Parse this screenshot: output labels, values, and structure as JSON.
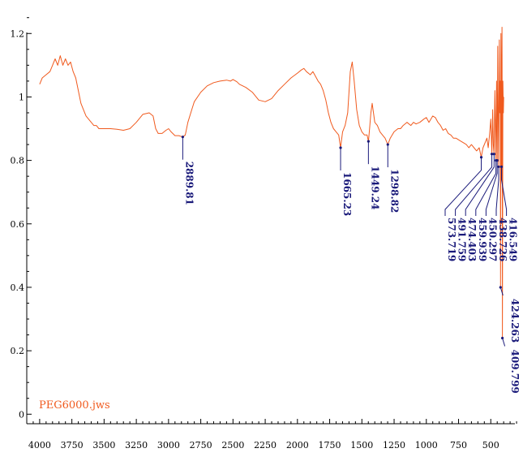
{
  "chart_data": {
    "type": "line",
    "title": "",
    "xlabel": "",
    "ylabel": "",
    "xlim": [
      4100,
      250
    ],
    "ylim": [
      -0.03,
      1.28
    ],
    "x_reversed": true,
    "grid": false,
    "series": [
      {
        "name": "PEG6000.jws",
        "color": "#f05a1e",
        "points": [
          [
            4000,
            1.04
          ],
          [
            3980,
            1.06
          ],
          [
            3950,
            1.07
          ],
          [
            3920,
            1.08
          ],
          [
            3900,
            1.1
          ],
          [
            3880,
            1.12
          ],
          [
            3860,
            1.1
          ],
          [
            3840,
            1.13
          ],
          [
            3820,
            1.1
          ],
          [
            3800,
            1.12
          ],
          [
            3780,
            1.1
          ],
          [
            3760,
            1.11
          ],
          [
            3740,
            1.08
          ],
          [
            3720,
            1.06
          ],
          [
            3700,
            1.02
          ],
          [
            3680,
            0.98
          ],
          [
            3660,
            0.96
          ],
          [
            3640,
            0.94
          ],
          [
            3620,
            0.93
          ],
          [
            3600,
            0.92
          ],
          [
            3580,
            0.91
          ],
          [
            3560,
            0.91
          ],
          [
            3540,
            0.9
          ],
          [
            3500,
            0.9
          ],
          [
            3450,
            0.9
          ],
          [
            3400,
            0.898
          ],
          [
            3350,
            0.895
          ],
          [
            3300,
            0.9
          ],
          [
            3250,
            0.92
          ],
          [
            3200,
            0.945
          ],
          [
            3150,
            0.95
          ],
          [
            3120,
            0.94
          ],
          [
            3100,
            0.9
          ],
          [
            3080,
            0.885
          ],
          [
            3050,
            0.885
          ],
          [
            3020,
            0.895
          ],
          [
            3000,
            0.9
          ],
          [
            2980,
            0.89
          ],
          [
            2950,
            0.878
          ],
          [
            2920,
            0.878
          ],
          [
            2889.81,
            0.874
          ],
          [
            2870,
            0.88
          ],
          [
            2850,
            0.92
          ],
          [
            2820,
            0.96
          ],
          [
            2800,
            0.985
          ],
          [
            2750,
            1.015
          ],
          [
            2700,
            1.035
          ],
          [
            2650,
            1.045
          ],
          [
            2600,
            1.05
          ],
          [
            2550,
            1.053
          ],
          [
            2520,
            1.05
          ],
          [
            2500,
            1.055
          ],
          [
            2470,
            1.048
          ],
          [
            2450,
            1.04
          ],
          [
            2400,
            1.03
          ],
          [
            2350,
            1.015
          ],
          [
            2300,
            0.99
          ],
          [
            2250,
            0.985
          ],
          [
            2200,
            0.995
          ],
          [
            2150,
            1.02
          ],
          [
            2100,
            1.04
          ],
          [
            2050,
            1.06
          ],
          [
            2000,
            1.075
          ],
          [
            1970,
            1.085
          ],
          [
            1950,
            1.09
          ],
          [
            1930,
            1.08
          ],
          [
            1900,
            1.07
          ],
          [
            1880,
            1.08
          ],
          [
            1860,
            1.065
          ],
          [
            1840,
            1.05
          ],
          [
            1820,
            1.04
          ],
          [
            1800,
            1.02
          ],
          [
            1780,
            0.99
          ],
          [
            1760,
            0.95
          ],
          [
            1740,
            0.92
          ],
          [
            1720,
            0.9
          ],
          [
            1700,
            0.89
          ],
          [
            1680,
            0.88
          ],
          [
            1665.23,
            0.84
          ],
          [
            1650,
            0.89
          ],
          [
            1630,
            0.91
          ],
          [
            1610,
            0.95
          ],
          [
            1590,
            1.08
          ],
          [
            1575,
            1.11
          ],
          [
            1560,
            1.05
          ],
          [
            1540,
            0.96
          ],
          [
            1520,
            0.91
          ],
          [
            1500,
            0.89
          ],
          [
            1480,
            0.88
          ],
          [
            1460,
            0.88
          ],
          [
            1449.24,
            0.86
          ],
          [
            1440,
            0.9
          ],
          [
            1430,
            0.95
          ],
          [
            1420,
            0.98
          ],
          [
            1410,
            0.95
          ],
          [
            1400,
            0.92
          ],
          [
            1380,
            0.91
          ],
          [
            1360,
            0.89
          ],
          [
            1340,
            0.88
          ],
          [
            1320,
            0.87
          ],
          [
            1298.82,
            0.85
          ],
          [
            1280,
            0.87
          ],
          [
            1250,
            0.89
          ],
          [
            1220,
            0.9
          ],
          [
            1200,
            0.9
          ],
          [
            1180,
            0.91
          ],
          [
            1150,
            0.92
          ],
          [
            1120,
            0.91
          ],
          [
            1100,
            0.92
          ],
          [
            1080,
            0.915
          ],
          [
            1050,
            0.92
          ],
          [
            1020,
            0.93
          ],
          [
            1000,
            0.935
          ],
          [
            980,
            0.92
          ],
          [
            950,
            0.94
          ],
          [
            930,
            0.935
          ],
          [
            910,
            0.92
          ],
          [
            890,
            0.91
          ],
          [
            870,
            0.895
          ],
          [
            850,
            0.9
          ],
          [
            830,
            0.885
          ],
          [
            810,
            0.88
          ],
          [
            790,
            0.87
          ],
          [
            770,
            0.87
          ],
          [
            750,
            0.865
          ],
          [
            730,
            0.86
          ],
          [
            710,
            0.855
          ],
          [
            690,
            0.85
          ],
          [
            670,
            0.84
          ],
          [
            650,
            0.85
          ],
          [
            630,
            0.84
          ],
          [
            610,
            0.83
          ],
          [
            590,
            0.84
          ],
          [
            573.719,
            0.81
          ],
          [
            560,
            0.84
          ],
          [
            540,
            0.86
          ],
          [
            530,
            0.87
          ],
          [
            520,
            0.84
          ],
          [
            510,
            0.88
          ],
          [
            500,
            0.93
          ],
          [
            491.759,
            0.82
          ],
          [
            485,
            0.96
          ],
          [
            480,
            0.85
          ],
          [
            474.403,
            0.82
          ],
          [
            468,
            1.02
          ],
          [
            463,
            0.88
          ],
          [
            459.939,
            0.8
          ],
          [
            455,
            1.05
          ],
          [
            450.297,
            0.8
          ],
          [
            446,
            1.16
          ],
          [
            442,
            0.92
          ],
          [
            438.726,
            0.78
          ],
          [
            434,
            1.18
          ],
          [
            430,
            0.95
          ],
          [
            426,
            1.05
          ],
          [
            424.263,
            0.4
          ],
          [
            421,
            1.2
          ],
          [
            418,
            1.0
          ],
          [
            416.549,
            0.78
          ],
          [
            413,
            1.22
          ],
          [
            411,
            0.9
          ],
          [
            409.799,
            0.24
          ],
          [
            406,
            1.05
          ],
          [
            402,
            0.95
          ],
          [
            400,
            1.0
          ]
        ]
      }
    ],
    "x_ticks": [
      4000,
      3750,
      3500,
      3250,
      3000,
      2750,
      2500,
      2250,
      2000,
      1750,
      1500,
      1250,
      1000,
      750,
      500
    ],
    "y_ticks": [
      0,
      0.2,
      0.4,
      0.6,
      0.8,
      1,
      1.2
    ],
    "legend_text": "PEG6000.jws",
    "peak_labels": [
      {
        "label": "2889.81",
        "x": 2889.81,
        "y": 0.874
      },
      {
        "label": "1665.23",
        "x": 1665.23,
        "y": 0.84
      },
      {
        "label": "1449.24",
        "x": 1449.24,
        "y": 0.86
      },
      {
        "label": "1298.82",
        "x": 1298.82,
        "y": 0.85
      },
      {
        "label": "573.719",
        "x": 573.719,
        "y": 0.81
      },
      {
        "label": "491.759",
        "x": 491.759,
        "y": 0.82
      },
      {
        "label": "474.403",
        "x": 474.403,
        "y": 0.82
      },
      {
        "label": "459.939",
        "x": 459.939,
        "y": 0.8
      },
      {
        "label": "450.297",
        "x": 450.297,
        "y": 0.8
      },
      {
        "label": "438.726",
        "x": 438.726,
        "y": 0.78
      },
      {
        "label": "416.549",
        "x": 416.549,
        "y": 0.78
      },
      {
        "label": "424.263",
        "x": 424.263,
        "y": 0.4
      },
      {
        "label": "409.799",
        "x": 409.799,
        "y": 0.24
      }
    ],
    "colors": {
      "curve": "#f05a1e",
      "peaks": "#1a1a7a",
      "axis": "#000000"
    }
  }
}
